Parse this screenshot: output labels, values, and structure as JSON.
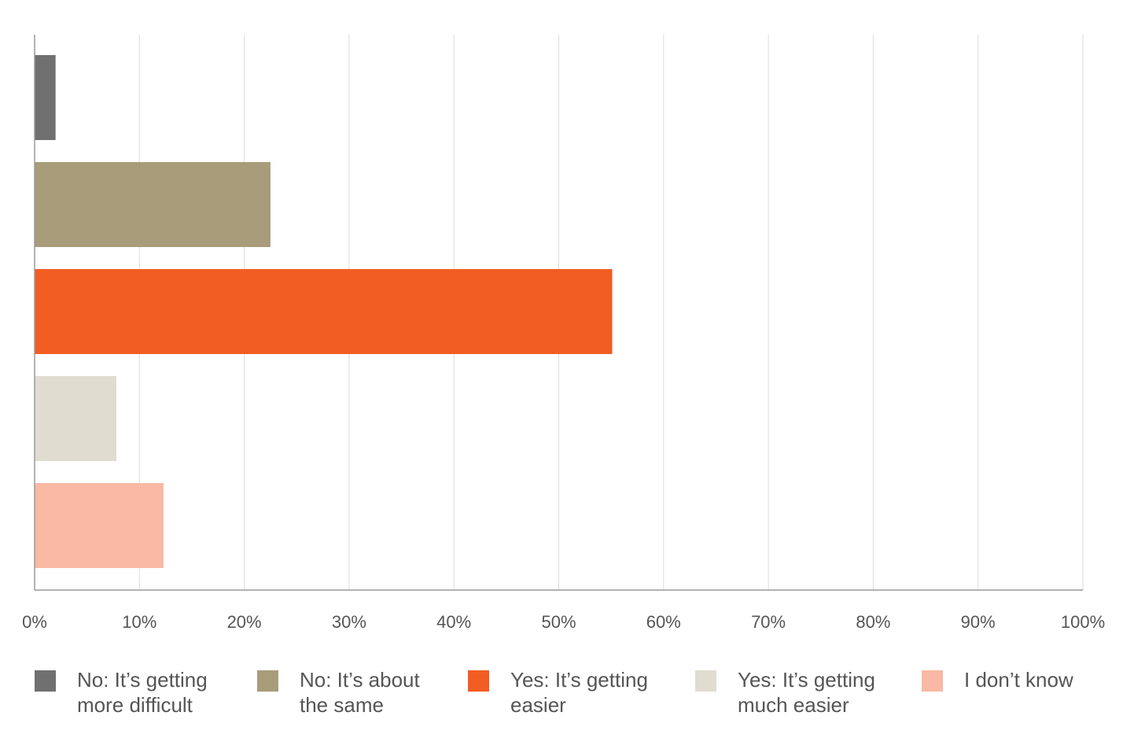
{
  "chart_data": {
    "type": "bar",
    "orientation": "horizontal",
    "categories": [
      "No: It’s getting more difficult",
      "No: It’s about the same",
      "Yes: It’s getting easier",
      "Yes: It’s getting much easier",
      "I don’t know"
    ],
    "values": [
      2,
      22.5,
      55.1,
      7.8,
      12.3
    ],
    "colors": [
      "#707070",
      "#a89c7a",
      "#f15d22",
      "#e0dcd0",
      "#f9b9a4"
    ],
    "xlim": [
      0,
      100
    ],
    "xticks": [
      "0%",
      "10%",
      "20%",
      "30%",
      "40%",
      "50%",
      "60%",
      "70%",
      "80%",
      "90%",
      "100%"
    ],
    "grid": "vertical",
    "legend_position": "bottom",
    "legend": [
      {
        "label": "No: It’s getting\nmore difficult",
        "color": "#707070"
      },
      {
        "label": "No: It’s about\nthe same",
        "color": "#a89c7a"
      },
      {
        "label": "Yes: It’s getting\neasier",
        "color": "#f15d22"
      },
      {
        "label": "Yes: It’s getting\nmuch easier",
        "color": "#e0dcd0"
      },
      {
        "label": "I don’t know",
        "color": "#f9b9a4"
      }
    ]
  }
}
